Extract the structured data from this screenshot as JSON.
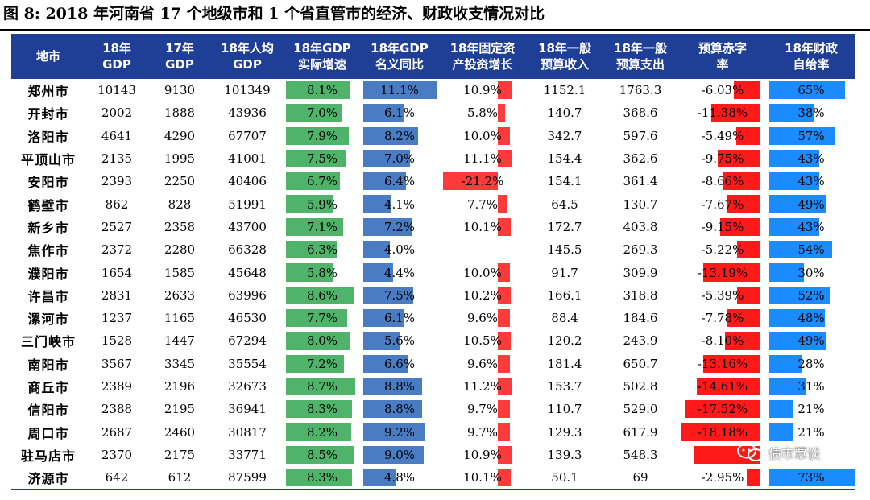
{
  "title": "图 8:  2018 年河南省 17 个地级市和 1 个省直管市的经济、财政收支情况对比",
  "headers": [
    [
      "地市"
    ],
    [
      "18年",
      "GDP"
    ],
    [
      "17年",
      "GDP"
    ],
    [
      "18年人均",
      "GDP"
    ],
    [
      "18年GDP",
      "实际增速"
    ],
    [
      "18年GDP",
      "名义同比"
    ],
    [
      "18年固定资",
      "产投资增长"
    ],
    [
      "18年一般",
      "预算收入"
    ],
    [
      "18年一般",
      "预算支出"
    ],
    [
      "预算赤字",
      "率"
    ],
    [
      "18年财政",
      "自给率"
    ]
  ],
  "rows": [
    {
      "city": "郑州市",
      "gdp18": "10143",
      "gdp17": "9130",
      "pc": "101349",
      "real": "8.1%",
      "realv": 8.1,
      "nom": "11.1%",
      "nomv": 11.1,
      "fa": "10.9%",
      "fav": 10.9,
      "rev": "1152.1",
      "exp": "1763.3",
      "def": "-6.03%",
      "defv": -6.03,
      "self": "65%",
      "selfv": 65
    },
    {
      "city": "开封市",
      "gdp18": "2002",
      "gdp17": "1888",
      "pc": "43936",
      "real": "7.0%",
      "realv": 7.0,
      "nom": "6.1%",
      "nomv": 6.1,
      "fa": "5.8%",
      "fav": 5.8,
      "rev": "140.7",
      "exp": "368.6",
      "def": "-11.38%",
      "defv": -11.38,
      "self": "38%",
      "selfv": 38
    },
    {
      "city": "洛阳市",
      "gdp18": "4641",
      "gdp17": "4290",
      "pc": "67707",
      "real": "7.9%",
      "realv": 7.9,
      "nom": "8.2%",
      "nomv": 8.2,
      "fa": "10.0%",
      "fav": 10.0,
      "rev": "342.7",
      "exp": "597.6",
      "def": "-5.49%",
      "defv": -5.49,
      "self": "57%",
      "selfv": 57
    },
    {
      "city": "平顶山市",
      "gdp18": "2135",
      "gdp17": "1995",
      "pc": "41001",
      "real": "7.5%",
      "realv": 7.5,
      "nom": "7.0%",
      "nomv": 7.0,
      "fa": "11.1%",
      "fav": 11.1,
      "rev": "154.4",
      "exp": "362.6",
      "def": "-9.75%",
      "defv": -9.75,
      "self": "43%",
      "selfv": 43
    },
    {
      "city": "安阳市",
      "gdp18": "2393",
      "gdp17": "2250",
      "pc": "40406",
      "real": "6.7%",
      "realv": 6.7,
      "nom": "6.4%",
      "nomv": 6.4,
      "fa": "-21.2%",
      "fav": -21.2,
      "rev": "154.1",
      "exp": "361.4",
      "def": "-8.66%",
      "defv": -8.66,
      "self": "43%",
      "selfv": 43
    },
    {
      "city": "鹤壁市",
      "gdp18": "862",
      "gdp17": "828",
      "pc": "51991",
      "real": "5.9%",
      "realv": 5.9,
      "nom": "4.1%",
      "nomv": 4.1,
      "fa": "7.7%",
      "fav": 7.7,
      "rev": "64.5",
      "exp": "130.7",
      "def": "-7.67%",
      "defv": -7.67,
      "self": "49%",
      "selfv": 49
    },
    {
      "city": "新乡市",
      "gdp18": "2527",
      "gdp17": "2358",
      "pc": "43700",
      "real": "7.1%",
      "realv": 7.1,
      "nom": "7.2%",
      "nomv": 7.2,
      "fa": "10.1%",
      "fav": 10.1,
      "rev": "172.7",
      "exp": "403.8",
      "def": "-9.15%",
      "defv": -9.15,
      "self": "43%",
      "selfv": 43
    },
    {
      "city": "焦作市",
      "gdp18": "2372",
      "gdp17": "2280",
      "pc": "66328",
      "real": "6.3%",
      "realv": 6.3,
      "nom": "4.0%",
      "nomv": 4.0,
      "fa": "",
      "fav": 0,
      "rev": "145.5",
      "exp": "269.3",
      "def": "-5.22%",
      "defv": -5.22,
      "self": "54%",
      "selfv": 54
    },
    {
      "city": "濮阳市",
      "gdp18": "1654",
      "gdp17": "1585",
      "pc": "45648",
      "real": "5.8%",
      "realv": 5.8,
      "nom": "4.4%",
      "nomv": 4.4,
      "fa": "10.0%",
      "fav": 10.0,
      "rev": "91.7",
      "exp": "309.9",
      "def": "-13.19%",
      "defv": -13.19,
      "self": "30%",
      "selfv": 30
    },
    {
      "city": "许昌市",
      "gdp18": "2831",
      "gdp17": "2633",
      "pc": "63996",
      "real": "8.6%",
      "realv": 8.6,
      "nom": "7.5%",
      "nomv": 7.5,
      "fa": "10.2%",
      "fav": 10.2,
      "rev": "166.1",
      "exp": "318.8",
      "def": "-5.39%",
      "defv": -5.39,
      "self": "52%",
      "selfv": 52
    },
    {
      "city": "漯河市",
      "gdp18": "1237",
      "gdp17": "1165",
      "pc": "46530",
      "real": "7.7%",
      "realv": 7.7,
      "nom": "6.1%",
      "nomv": 6.1,
      "fa": "9.6%",
      "fav": 9.6,
      "rev": "88.4",
      "exp": "184.6",
      "def": "-7.78%",
      "defv": -7.78,
      "self": "48%",
      "selfv": 48
    },
    {
      "city": "三门峡市",
      "gdp18": "1528",
      "gdp17": "1447",
      "pc": "67294",
      "real": "8.0%",
      "realv": 8.0,
      "nom": "5.6%",
      "nomv": 5.6,
      "fa": "10.5%",
      "fav": 10.5,
      "rev": "120.2",
      "exp": "243.9",
      "def": "-8.10%",
      "defv": -8.1,
      "self": "49%",
      "selfv": 49
    },
    {
      "city": "南阳市",
      "gdp18": "3567",
      "gdp17": "3345",
      "pc": "35554",
      "real": "7.2%",
      "realv": 7.2,
      "nom": "6.6%",
      "nomv": 6.6,
      "fa": "9.6%",
      "fav": 9.6,
      "rev": "181.4",
      "exp": "650.7",
      "def": "-13.16%",
      "defv": -13.16,
      "self": "28%",
      "selfv": 28
    },
    {
      "city": "商丘市",
      "gdp18": "2389",
      "gdp17": "2196",
      "pc": "32673",
      "real": "8.7%",
      "realv": 8.7,
      "nom": "8.8%",
      "nomv": 8.8,
      "fa": "11.2%",
      "fav": 11.2,
      "rev": "153.7",
      "exp": "502.8",
      "def": "-14.61%",
      "defv": -14.61,
      "self": "31%",
      "selfv": 31
    },
    {
      "city": "信阳市",
      "gdp18": "2388",
      "gdp17": "2195",
      "pc": "36941",
      "real": "8.3%",
      "realv": 8.3,
      "nom": "8.8%",
      "nomv": 8.8,
      "fa": "9.7%",
      "fav": 9.7,
      "rev": "110.7",
      "exp": "529.0",
      "def": "-17.52%",
      "defv": -17.52,
      "self": "21%",
      "selfv": 21
    },
    {
      "city": "周口市",
      "gdp18": "2687",
      "gdp17": "2460",
      "pc": "30817",
      "real": "8.2%",
      "realv": 8.2,
      "nom": "9.2%",
      "nomv": 9.2,
      "fa": "9.7%",
      "fav": 9.7,
      "rev": "129.3",
      "exp": "617.9",
      "def": "-18.18%",
      "defv": -18.18,
      "self": "21%",
      "selfv": 21
    },
    {
      "city": "驻马店市",
      "gdp18": "2370",
      "gdp17": "2175",
      "pc": "33771",
      "real": "8.5%",
      "realv": 8.5,
      "nom": "9.0%",
      "nomv": 9.0,
      "fa": "10.9%",
      "fav": 10.9,
      "rev": "139.3",
      "exp": "548.3",
      "def": "",
      "defv": -15.4,
      "self": "",
      "selfv": 0
    },
    {
      "city": "济源市",
      "gdp18": "642",
      "gdp17": "612",
      "pc": "87599",
      "real": "8.3%",
      "realv": 8.3,
      "nom": "4.8%",
      "nomv": 4.8,
      "fa": "10.1%",
      "fav": 10.1,
      "rev": "50.1",
      "exp": "69",
      "def": "-2.95%",
      "defv": -2.95,
      "self": "73%",
      "selfv": 73
    }
  ],
  "watermark": "债市覃谈",
  "colors": {
    "header": "#1f3f96",
    "gdp_bar": "#4fb36a",
    "nominal_bar": "#4a7cc4",
    "fixed_asset_bar": "#ff3a3a",
    "deficit_bar": "#ff1a1a",
    "self_sufficiency_bar": "#1a8cff"
  }
}
